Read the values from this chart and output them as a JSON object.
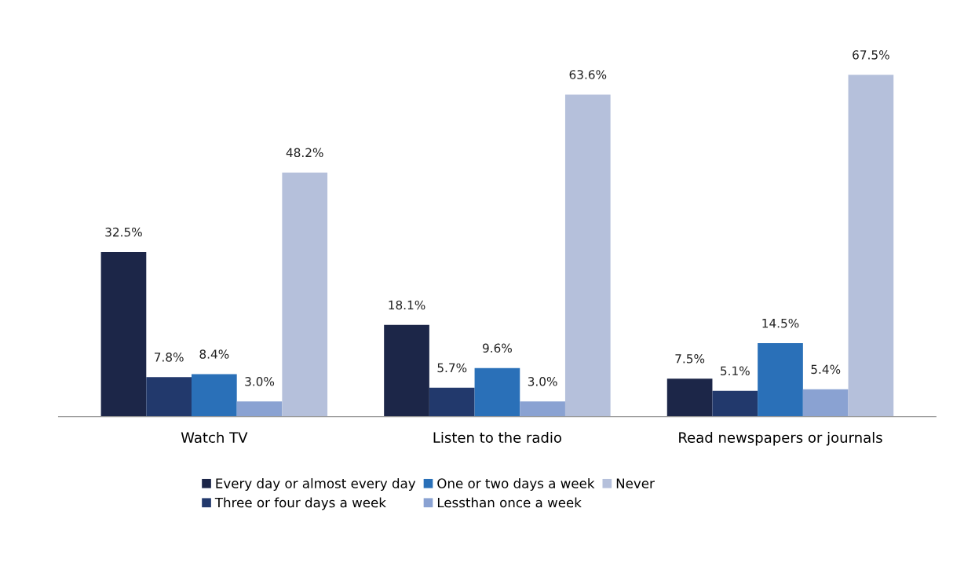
{
  "chart_data": {
    "type": "bar",
    "categories": [
      "Watch TV",
      "Listen to the radio",
      "Read newspapers or journals"
    ],
    "series": [
      {
        "name": "Every day or almost every day",
        "color": "#1c2648",
        "values": [
          32.5,
          18.1,
          7.5
        ],
        "value_labels": [
          "32.5%",
          "18.1%",
          "7.5%"
        ]
      },
      {
        "name": "Three or four days a week",
        "color": "#22396c",
        "values": [
          7.8,
          5.7,
          5.1
        ],
        "value_labels": [
          "7.8%",
          "5.7%",
          "5.1%"
        ]
      },
      {
        "name": "One or two days a week",
        "color": "#2a70b8",
        "values": [
          8.4,
          9.6,
          14.5
        ],
        "value_labels": [
          "8.4%",
          "9.6%",
          "14.5%"
        ]
      },
      {
        "name": "Lessthan once a week",
        "color": "#8aa2d2",
        "values": [
          3.0,
          3.0,
          5.4
        ],
        "value_labels": [
          "3.0%",
          "3.0%",
          "5.4%"
        ]
      },
      {
        "name": "Never",
        "color": "#b5c0db",
        "values": [
          48.2,
          63.6,
          67.5
        ],
        "value_labels": [
          "48.2%",
          "63.6%",
          "67.5%"
        ]
      }
    ],
    "legend": "bottom",
    "grid": false
  }
}
